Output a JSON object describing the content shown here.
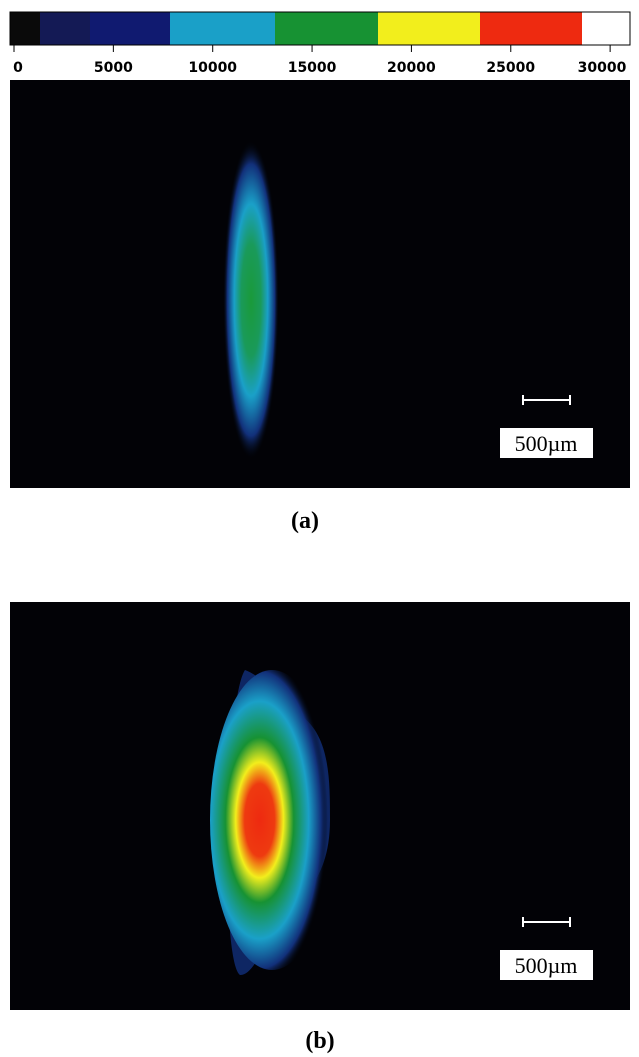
{
  "colorbar": {
    "lim": [
      0,
      31000
    ],
    "ticks": [
      0,
      5000,
      10000,
      15000,
      20000,
      25000,
      30000
    ],
    "colors": [
      "#0a0a0a",
      "#141a55",
      "#101a70",
      "#1aa0c8",
      "#179233",
      "#f2ee1c",
      "#ee2a10",
      "#ffffff"
    ]
  },
  "panels": [
    {
      "label": "(a)",
      "scale_label": "500µm"
    },
    {
      "label": "(b)",
      "scale_label": "500µm"
    }
  ]
}
